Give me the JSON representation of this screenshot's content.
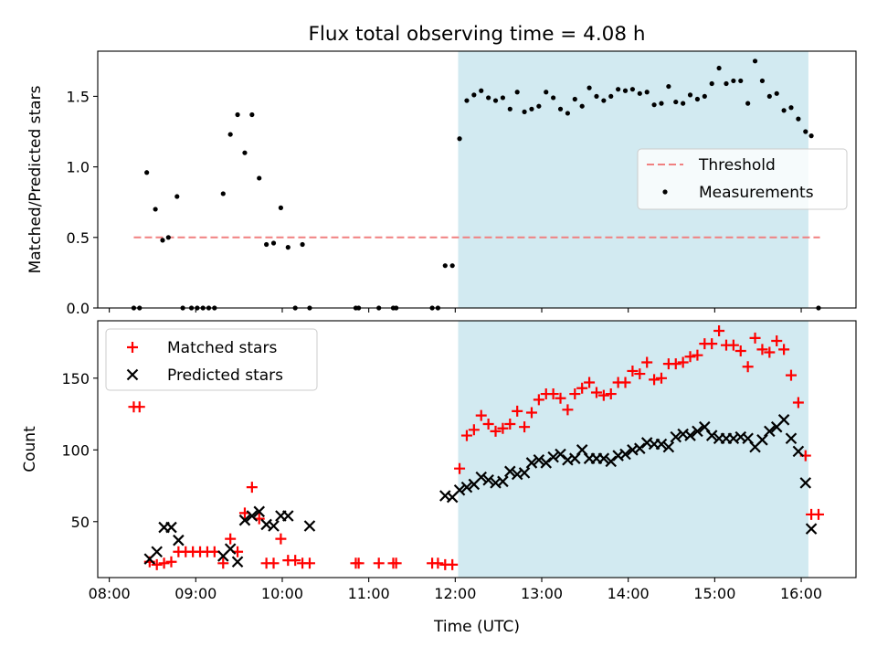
{
  "figure": {
    "title": "Flux total observing time = 4.08 h",
    "xlabel": "Time (UTC)"
  },
  "colors": {
    "shade": "#add8e6",
    "threshold": "#f08080",
    "measurement": "#000000",
    "matched": "#ff0000",
    "predicted": "#000000",
    "axes": "#000000"
  },
  "chart_data": [
    {
      "type": "scatter",
      "ylabel": "Matched/Predicted stars",
      "xlim": [
        "07:52",
        "16:38"
      ],
      "ylim": [
        0,
        1.82
      ],
      "xticks": [
        "08:00",
        "09:00",
        "10:00",
        "11:00",
        "12:00",
        "13:00",
        "14:00",
        "15:00",
        "16:00"
      ],
      "yticks": [
        "0.0",
        "0.5",
        "1.0",
        "1.5"
      ],
      "shaded_region": [
        "12:02",
        "16:05"
      ],
      "grid": false,
      "legend": {
        "position": "center-right",
        "entries": [
          {
            "label": "Threshold",
            "style": "dashed-line"
          },
          {
            "label": "Measurements",
            "style": "dot"
          }
        ]
      },
      "threshold": {
        "value": 0.5,
        "from": "08:17",
        "to": "16:13"
      },
      "series": [
        {
          "name": "Measurements",
          "points": [
            [
              "08:17",
              0
            ],
            [
              "08:21",
              0
            ],
            [
              "08:26",
              0.96
            ],
            [
              "08:32",
              0.7
            ],
            [
              "08:37",
              0.48
            ],
            [
              "08:41",
              0.5
            ],
            [
              "08:47",
              0.79
            ],
            [
              "08:51",
              0
            ],
            [
              "08:57",
              0
            ],
            [
              "09:01",
              0
            ],
            [
              "09:05",
              0
            ],
            [
              "09:09",
              0
            ],
            [
              "09:13",
              0
            ],
            [
              "09:19",
              0.81
            ],
            [
              "09:24",
              1.23
            ],
            [
              "09:29",
              1.37
            ],
            [
              "09:34",
              1.1
            ],
            [
              "09:39",
              1.37
            ],
            [
              "09:44",
              0.92
            ],
            [
              "09:49",
              0.45
            ],
            [
              "09:54",
              0.46
            ],
            [
              "09:59",
              0.71
            ],
            [
              "10:04",
              0.43
            ],
            [
              "10:09",
              0
            ],
            [
              "10:14",
              0.45
            ],
            [
              "10:19",
              0
            ],
            [
              "10:51",
              0
            ],
            [
              "10:53",
              0
            ],
            [
              "11:07",
              0
            ],
            [
              "11:17",
              0
            ],
            [
              "11:19",
              0
            ],
            [
              "11:44",
              0
            ],
            [
              "11:48",
              0
            ],
            [
              "11:53",
              0.3
            ],
            [
              "11:58",
              0.3
            ],
            [
              "12:03",
              1.2
            ],
            [
              "12:08",
              1.47
            ],
            [
              "12:13",
              1.51
            ],
            [
              "12:18",
              1.54
            ],
            [
              "12:23",
              1.49
            ],
            [
              "12:28",
              1.47
            ],
            [
              "12:33",
              1.49
            ],
            [
              "12:38",
              1.41
            ],
            [
              "12:43",
              1.53
            ],
            [
              "12:48",
              1.39
            ],
            [
              "12:53",
              1.41
            ],
            [
              "12:58",
              1.43
            ],
            [
              "13:03",
              1.53
            ],
            [
              "13:08",
              1.49
            ],
            [
              "13:13",
              1.41
            ],
            [
              "13:18",
              1.38
            ],
            [
              "13:23",
              1.48
            ],
            [
              "13:28",
              1.43
            ],
            [
              "13:33",
              1.56
            ],
            [
              "13:38",
              1.5
            ],
            [
              "13:43",
              1.47
            ],
            [
              "13:48",
              1.5
            ],
            [
              "13:53",
              1.55
            ],
            [
              "13:58",
              1.54
            ],
            [
              "14:03",
              1.55
            ],
            [
              "14:08",
              1.52
            ],
            [
              "14:13",
              1.53
            ],
            [
              "14:18",
              1.44
            ],
            [
              "14:23",
              1.45
            ],
            [
              "14:28",
              1.57
            ],
            [
              "14:33",
              1.46
            ],
            [
              "14:38",
              1.45
            ],
            [
              "14:43",
              1.51
            ],
            [
              "14:48",
              1.48
            ],
            [
              "14:53",
              1.5
            ],
            [
              "14:58",
              1.59
            ],
            [
              "15:03",
              1.7
            ],
            [
              "15:08",
              1.59
            ],
            [
              "15:13",
              1.61
            ],
            [
              "15:18",
              1.61
            ],
            [
              "15:23",
              1.45
            ],
            [
              "15:28",
              1.75
            ],
            [
              "15:33",
              1.61
            ],
            [
              "15:38",
              1.5
            ],
            [
              "15:43",
              1.52
            ],
            [
              "15:48",
              1.4
            ],
            [
              "15:53",
              1.42
            ],
            [
              "15:58",
              1.34
            ],
            [
              "16:03",
              1.25
            ],
            [
              "16:07",
              1.22
            ],
            [
              "16:12",
              0
            ]
          ]
        }
      ]
    },
    {
      "type": "scatter",
      "ylabel": "Count",
      "xlim": [
        "07:52",
        "16:38"
      ],
      "ylim": [
        11,
        190
      ],
      "xticks": [
        "08:00",
        "09:00",
        "10:00",
        "11:00",
        "12:00",
        "13:00",
        "14:00",
        "15:00",
        "16:00"
      ],
      "yticks": [
        "50",
        "100",
        "150"
      ],
      "shaded_region": [
        "12:02",
        "16:05"
      ],
      "grid": false,
      "legend": {
        "position": "top-left",
        "entries": [
          {
            "label": "Matched stars",
            "style": "plus"
          },
          {
            "label": "Predicted stars",
            "style": "cross"
          }
        ]
      },
      "series": [
        {
          "name": "Matched stars",
          "points": [
            [
              "08:17",
              130
            ],
            [
              "08:21",
              130
            ],
            [
              "08:28",
              22
            ],
            [
              "08:33",
              20
            ],
            [
              "08:38",
              21
            ],
            [
              "08:43",
              22
            ],
            [
              "08:48",
              29
            ],
            [
              "08:53",
              29
            ],
            [
              "08:58",
              29
            ],
            [
              "09:03",
              29
            ],
            [
              "09:08",
              29
            ],
            [
              "09:13",
              29
            ],
            [
              "09:19",
              21
            ],
            [
              "09:24",
              38
            ],
            [
              "09:29",
              29
            ],
            [
              "09:34",
              56
            ],
            [
              "09:39",
              74
            ],
            [
              "09:44",
              52
            ],
            [
              "09:49",
              21
            ],
            [
              "09:54",
              21
            ],
            [
              "09:59",
              38
            ],
            [
              "10:04",
              23
            ],
            [
              "10:09",
              23
            ],
            [
              "10:14",
              21
            ],
            [
              "10:19",
              21
            ],
            [
              "10:51",
              21
            ],
            [
              "10:53",
              21
            ],
            [
              "11:07",
              21
            ],
            [
              "11:17",
              21
            ],
            [
              "11:19",
              21
            ],
            [
              "11:44",
              21
            ],
            [
              "11:48",
              21
            ],
            [
              "11:53",
              20
            ],
            [
              "11:58",
              20
            ],
            [
              "12:03",
              87
            ],
            [
              "12:08",
              110
            ],
            [
              "12:13",
              114
            ],
            [
              "12:18",
              124
            ],
            [
              "12:23",
              118
            ],
            [
              "12:28",
              113
            ],
            [
              "12:33",
              115
            ],
            [
              "12:38",
              118
            ],
            [
              "12:43",
              127
            ],
            [
              "12:48",
              116
            ],
            [
              "12:53",
              126
            ],
            [
              "12:58",
              135
            ],
            [
              "13:03",
              139
            ],
            [
              "13:08",
              139
            ],
            [
              "13:13",
              136
            ],
            [
              "13:18",
              128
            ],
            [
              "13:23",
              139
            ],
            [
              "13:28",
              143
            ],
            [
              "13:33",
              147
            ],
            [
              "13:38",
              140
            ],
            [
              "13:43",
              138
            ],
            [
              "13:48",
              139
            ],
            [
              "13:53",
              147
            ],
            [
              "13:58",
              147
            ],
            [
              "14:03",
              155
            ],
            [
              "14:08",
              153
            ],
            [
              "14:13",
              161
            ],
            [
              "14:18",
              149
            ],
            [
              "14:23",
              150
            ],
            [
              "14:28",
              160
            ],
            [
              "14:33",
              160
            ],
            [
              "14:38",
              161
            ],
            [
              "14:43",
              165
            ],
            [
              "14:48",
              166
            ],
            [
              "14:53",
              174
            ],
            [
              "14:58",
              174
            ],
            [
              "15:03",
              183
            ],
            [
              "15:08",
              173
            ],
            [
              "15:13",
              173
            ],
            [
              "15:18",
              169
            ],
            [
              "15:23",
              158
            ],
            [
              "15:28",
              178
            ],
            [
              "15:33",
              170
            ],
            [
              "15:38",
              168
            ],
            [
              "15:43",
              176
            ],
            [
              "15:48",
              170
            ],
            [
              "15:53",
              152
            ],
            [
              "15:58",
              133
            ],
            [
              "16:03",
              96
            ],
            [
              "16:07",
              55
            ],
            [
              "16:12",
              55
            ]
          ]
        },
        {
          "name": "Predicted stars",
          "points": [
            [
              "08:28",
              24
            ],
            [
              "08:33",
              29
            ],
            [
              "08:38",
              46
            ],
            [
              "08:43",
              46
            ],
            [
              "08:48",
              37
            ],
            [
              "09:19",
              26
            ],
            [
              "09:24",
              31
            ],
            [
              "09:29",
              22
            ],
            [
              "09:34",
              51
            ],
            [
              "09:39",
              54
            ],
            [
              "09:44",
              57
            ],
            [
              "09:49",
              48
            ],
            [
              "09:54",
              47
            ],
            [
              "09:59",
              54
            ],
            [
              "10:04",
              54
            ],
            [
              "10:19",
              47
            ],
            [
              "11:53",
              68
            ],
            [
              "11:58",
              67
            ],
            [
              "12:03",
              72
            ],
            [
              "12:08",
              74
            ],
            [
              "12:13",
              76
            ],
            [
              "12:18",
              81
            ],
            [
              "12:23",
              79
            ],
            [
              "12:28",
              77
            ],
            [
              "12:33",
              78
            ],
            [
              "12:38",
              85
            ],
            [
              "12:43",
              83
            ],
            [
              "12:48",
              84
            ],
            [
              "12:53",
              91
            ],
            [
              "12:58",
              93
            ],
            [
              "13:03",
              91
            ],
            [
              "13:08",
              95
            ],
            [
              "13:13",
              97
            ],
            [
              "13:18",
              93
            ],
            [
              "13:23",
              94
            ],
            [
              "13:28",
              100
            ],
            [
              "13:33",
              94
            ],
            [
              "13:38",
              94
            ],
            [
              "13:43",
              94
            ],
            [
              "13:48",
              92
            ],
            [
              "13:53",
              96
            ],
            [
              "13:58",
              97
            ],
            [
              "14:03",
              100
            ],
            [
              "14:08",
              101
            ],
            [
              "14:13",
              105
            ],
            [
              "14:18",
              104
            ],
            [
              "14:23",
              104
            ],
            [
              "14:28",
              102
            ],
            [
              "14:33",
              109
            ],
            [
              "14:38",
              111
            ],
            [
              "14:43",
              110
            ],
            [
              "14:48",
              113
            ],
            [
              "14:53",
              116
            ],
            [
              "14:58",
              110
            ],
            [
              "15:03",
              108
            ],
            [
              "15:08",
              108
            ],
            [
              "15:13",
              108
            ],
            [
              "15:18",
              109
            ],
            [
              "15:23",
              108
            ],
            [
              "15:28",
              102
            ],
            [
              "15:33",
              107
            ],
            [
              "15:38",
              113
            ],
            [
              "15:43",
              116
            ],
            [
              "15:48",
              121
            ],
            [
              "15:53",
              108
            ],
            [
              "15:58",
              99
            ],
            [
              "16:03",
              77
            ],
            [
              "16:07",
              45
            ]
          ]
        }
      ]
    }
  ]
}
